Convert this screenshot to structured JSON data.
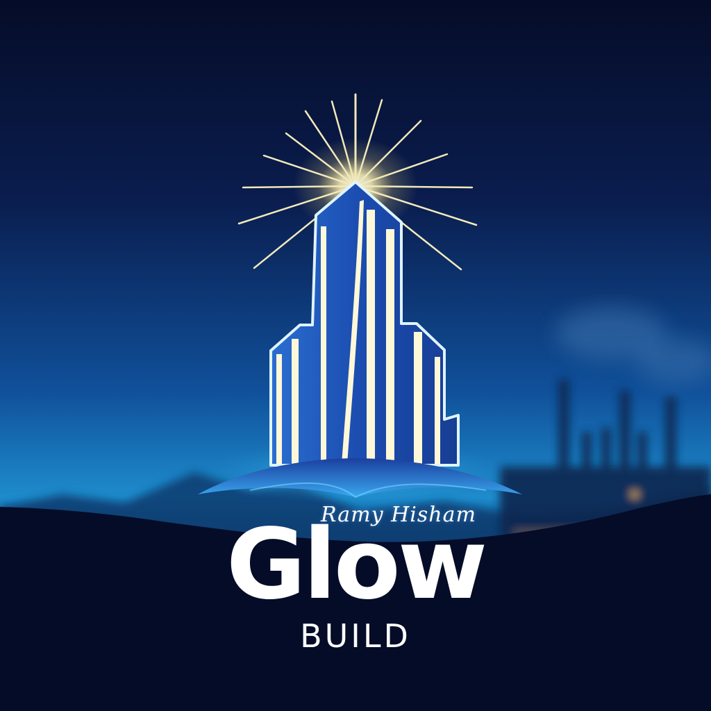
{
  "logo": {
    "signature": "Ramy Hisham",
    "name": "Glow",
    "tagline": "BUILD"
  },
  "colors": {
    "background_top": "#050c28",
    "background_glow": "#1a86c6",
    "tower_blue": "#1c4fb0",
    "tower_stripe": "#fff8d8",
    "ray_color": "#fff5c0",
    "text": "#ffffff"
  },
  "icons": {
    "emblem": "glowing-skyscraper-icon",
    "background": "industrial-skyline"
  }
}
